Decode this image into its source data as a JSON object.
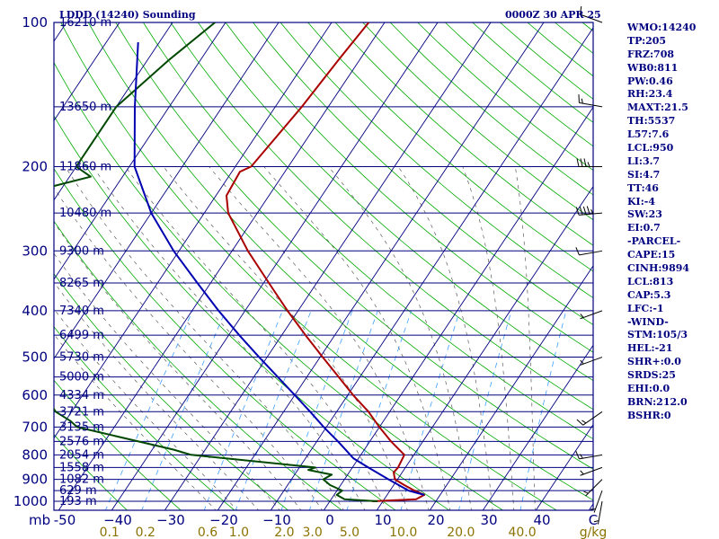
{
  "header": {
    "station_title": "LDDD (14240) Sounding",
    "valid_time": "0000Z 30 APR 25"
  },
  "stats": [
    "WMO:14240",
    "TP:205",
    "FRZ:708",
    "WB0:811",
    "PW:0.46",
    "RH:23.4",
    "MAXT:21.5",
    "TH:5537",
    "L57:7.6",
    "LCL:950",
    "LI:3.7",
    "SI:4.7",
    "TT:46",
    "KI:-4",
    "SW:23",
    "EI:0.7",
    "-PARCEL-",
    "CAPE:15",
    "CINH:9894",
    "LCL:813",
    "CAP:5.3",
    "LFC:-1",
    "-WIND-",
    "STM:105/3",
    "HEL:-21",
    "SHR+:0.0",
    "SRDS:25",
    "EHI:0.0",
    "BRN:212.0",
    "BSHR:0"
  ],
  "colors": {
    "frame": "#00007f",
    "isobar": "#00007f",
    "isotherm": "#000080",
    "dry_adiabat": "#00aa00",
    "moist_adiabat": "#5a5a5a",
    "mixing_ratio": "#3fa0ff",
    "temperature": "#aa0000",
    "dewpoint": "#004800",
    "parcel": "#0000b0",
    "axis_text": "#000080",
    "mixing_text": "#8b7300"
  },
  "chart_data": {
    "type": "line",
    "title": "LDDD (14240) Sounding",
    "diagram": "Skew-T log-P",
    "pressure_unit": "mb",
    "temperature_unit": "C",
    "mixing_ratio_unit": "g/kg",
    "ylim": [
      1000,
      100
    ],
    "xlim": [
      -50,
      50
    ],
    "grid": true,
    "legend": "none",
    "pressure_ticks": [
      100,
      200,
      300,
      400,
      500,
      600,
      700,
      800,
      900,
      1000
    ],
    "temperature_ticks": [
      -50,
      -40,
      -30,
      -20,
      -10,
      0,
      10,
      20,
      30,
      40
    ],
    "temperature_tick_labels": [
      "-50",
      "−40",
      "−30",
      "−20",
      "−10",
      "0",
      "10",
      "20",
      "30",
      "40"
    ],
    "temperature_axis_end_label": "C",
    "pressure_axis_label": "mb",
    "mixing_ratio_ticks": [
      "0.1",
      "0.2",
      "0.6",
      "1.0",
      "2.0",
      "3.0",
      "5.0",
      "10.0",
      "20.0",
      "40.0"
    ],
    "mixing_ratio_values": [
      0.1,
      0.2,
      0.6,
      1.0,
      2.0,
      3.0,
      5.0,
      10.0,
      20.0,
      40.0
    ],
    "height_labels": [
      {
        "p": 100,
        "label": "16210 m"
      },
      {
        "p": 150,
        "label": "13650 m"
      },
      {
        "p": 200,
        "label": "11860 m"
      },
      {
        "p": 250,
        "label": "10480 m"
      },
      {
        "p": 300,
        "label": "9300 m"
      },
      {
        "p": 350,
        "label": "8265 m"
      },
      {
        "p": 400,
        "label": "7340 m"
      },
      {
        "p": 450,
        "label": "6499 m"
      },
      {
        "p": 500,
        "label": "5730 m"
      },
      {
        "p": 550,
        "label": "5000 m"
      },
      {
        "p": 600,
        "label": "4334 m"
      },
      {
        "p": 650,
        "label": "3721 m"
      },
      {
        "p": 700,
        "label": "3135 m"
      },
      {
        "p": 750,
        "label": "2576 m"
      },
      {
        "p": 800,
        "label": "2054 m"
      },
      {
        "p": 850,
        "label": "1558 m"
      },
      {
        "p": 900,
        "label": "1082 m"
      },
      {
        "p": 950,
        "label": "629 m"
      },
      {
        "p": 1000,
        "label": "193 m"
      }
    ],
    "series": [
      {
        "key": "temperature",
        "points": [
          [
            1000,
            8.0
          ],
          [
            990,
            16.0
          ],
          [
            970,
            17.0
          ],
          [
            950,
            14.6
          ],
          [
            925,
            12.0
          ],
          [
            900,
            9.5
          ],
          [
            870,
            8.4
          ],
          [
            850,
            8.6
          ],
          [
            800,
            8.2
          ],
          [
            750,
            4.0
          ],
          [
            700,
            0.0
          ],
          [
            650,
            -4.0
          ],
          [
            600,
            -9.0
          ],
          [
            550,
            -14.0
          ],
          [
            500,
            -19.5
          ],
          [
            450,
            -25.5
          ],
          [
            400,
            -32.0
          ],
          [
            350,
            -39.0
          ],
          [
            300,
            -47.0
          ],
          [
            250,
            -55.5
          ],
          [
            230,
            -58.0
          ],
          [
            205,
            -58.5
          ],
          [
            200,
            -57.0
          ],
          [
            150,
            -55.0
          ],
          [
            120,
            -54.0
          ],
          [
            100,
            -53.0
          ]
        ]
      },
      {
        "key": "dewpoint",
        "points": [
          [
            1000,
            9.0
          ],
          [
            990,
            2.5
          ],
          [
            970,
            0.5
          ],
          [
            950,
            1.0
          ],
          [
            925,
            -2.0
          ],
          [
            900,
            -4.0
          ],
          [
            880,
            -3.0
          ],
          [
            860,
            -8.0
          ],
          [
            850,
            -7.0
          ],
          [
            800,
            -32.0
          ],
          [
            780,
            -36.0
          ],
          [
            700,
            -57.0
          ],
          [
            680,
            -59.0
          ],
          [
            650,
            -63.0
          ],
          [
            600,
            -67.0
          ],
          [
            550,
            -73.0
          ],
          [
            500,
            -78.0
          ],
          [
            450,
            -82.0
          ],
          [
            400,
            -88.0
          ],
          [
            350,
            -88.0
          ],
          [
            300,
            -93.0
          ],
          [
            290,
            -95.0
          ],
          [
            250,
            -94.0
          ],
          [
            220,
            -92.0
          ],
          [
            210,
            -86.0
          ],
          [
            200,
            -90.0
          ],
          [
            150,
            -90.0
          ],
          [
            120,
            -86.0
          ],
          [
            100,
            -82.0
          ]
        ]
      },
      {
        "key": "parcel",
        "points": [
          [
            970,
            17.0
          ],
          [
            950,
            13.5
          ],
          [
            900,
            8.3
          ],
          [
            850,
            3.0
          ],
          [
            813,
            -1.0
          ],
          [
            800,
            -2.0
          ],
          [
            750,
            -6.0
          ],
          [
            700,
            -10.5
          ],
          [
            650,
            -15.0
          ],
          [
            600,
            -20.0
          ],
          [
            550,
            -25.5
          ],
          [
            500,
            -31.5
          ],
          [
            450,
            -38.0
          ],
          [
            400,
            -45.0
          ],
          [
            350,
            -52.5
          ],
          [
            300,
            -61.0
          ],
          [
            250,
            -70.0
          ],
          [
            200,
            -79.0
          ],
          [
            150,
            -86.5
          ],
          [
            110,
            -94.0
          ]
        ]
      }
    ],
    "wind_barbs": [
      {
        "p": 100,
        "dir": 290,
        "spd": 10
      },
      {
        "p": 150,
        "dir": 280,
        "spd": 15
      },
      {
        "p": 200,
        "dir": 270,
        "spd": 35
      },
      {
        "p": 250,
        "dir": 265,
        "spd": 45
      },
      {
        "p": 300,
        "dir": 260,
        "spd": 10
      },
      {
        "p": 400,
        "dir": 250,
        "spd": 5
      },
      {
        "p": 500,
        "dir": 250,
        "spd": 5
      },
      {
        "p": 650,
        "dir": 235,
        "spd": 15
      },
      {
        "p": 800,
        "dir": 260,
        "spd": 15
      },
      {
        "p": 850,
        "dir": 250,
        "spd": 5
      },
      {
        "p": 900,
        "dir": 225,
        "spd": 5
      },
      {
        "p": 950,
        "dir": 200,
        "spd": 5
      },
      {
        "p": 1000,
        "dir": 190,
        "spd": 5
      }
    ]
  }
}
